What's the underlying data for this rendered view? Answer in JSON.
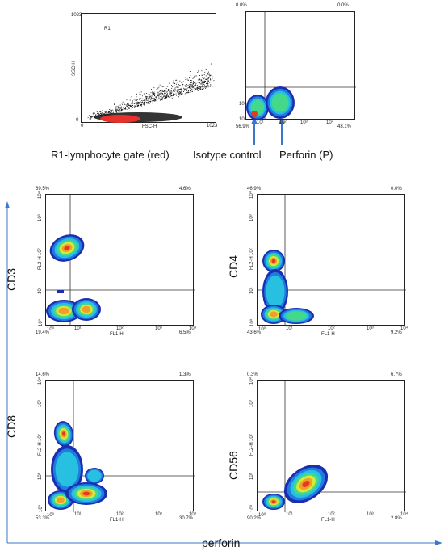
{
  "top_scatter": {
    "y_top": "1023",
    "y_bottom": "0",
    "x_zero": "0",
    "x_right": "1023",
    "ylabel": "SSC-H",
    "xlabel": "FSC-H",
    "gate": "R1"
  },
  "isotype": {
    "tl": "0.0%",
    "tr": "0.0%",
    "bl": "56.9%",
    "br": "43.1%",
    "y_ticks": [
      "10⁰",
      "10¹"
    ],
    "x_ticks": [
      "10⁰",
      "10¹",
      "10²",
      "10³",
      "10⁴"
    ]
  },
  "captions": {
    "gate": "R1-lymphocyte gate (red)",
    "isotype": "Isotype control",
    "perforin": "Perforin (P)"
  },
  "side_labels": {
    "cd3": "CD3",
    "cd8": "CD8",
    "cd4": "CD4",
    "cd56": "CD56",
    "perforin": "perforin"
  },
  "axis_names": {
    "x": "FL1-H",
    "y": "FL2-H"
  },
  "ticks": [
    "10⁰",
    "10¹",
    "10²",
    "10³",
    "10⁴"
  ],
  "plots": {
    "cd3": {
      "tl": "69.5%",
      "tr": "4.6%",
      "bl": "19.4%",
      "br": "6.5%"
    },
    "cd4": {
      "tl": "46.9%",
      "tr": "0.0%",
      "bl": "43.6%",
      "br": "9.2%"
    },
    "cd8": {
      "tl": "14.6%",
      "tr": "1.3%",
      "bl": "53.3%",
      "br": "30.7%"
    },
    "cd56": {
      "tl": "0.3%",
      "tr": "6.7%",
      "bl": "90.2%",
      "br": "2.8%"
    }
  },
  "colors": {
    "arrow": "#3a78c9",
    "gate": "#e8312a"
  }
}
